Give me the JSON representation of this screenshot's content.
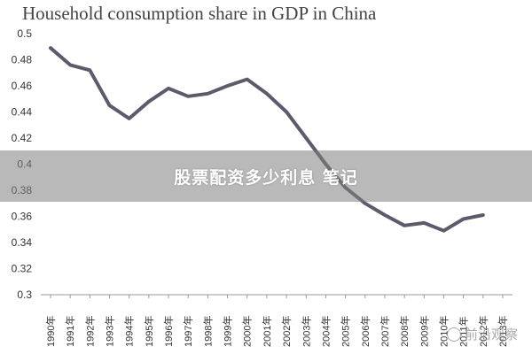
{
  "chart_data": {
    "type": "line",
    "title": "Household consumption share in GDP in China",
    "xlabel": "",
    "ylabel": "",
    "x": [
      "1990年",
      "1991年",
      "1992年",
      "1993年",
      "1994年",
      "1995年",
      "1996年",
      "1997年",
      "1998年",
      "1999年",
      "2000年",
      "2001年",
      "2002年",
      "2003年",
      "2004年",
      "2005年",
      "2006年",
      "2007年",
      "2008年",
      "2009年",
      "2010年",
      "2011年",
      "2012年",
      "2013年"
    ],
    "series": [
      {
        "values": [
          0.489,
          0.476,
          0.472,
          0.445,
          0.435,
          0.448,
          0.458,
          0.452,
          0.454,
          0.46,
          0.465,
          0.454,
          0.44,
          0.42,
          0.4,
          0.382,
          0.37,
          0.361,
          0.353,
          0.355,
          0.349,
          0.358,
          0.361,
          null
        ]
      }
    ],
    "yticks": [
      "0.3",
      "0.32",
      "0.34",
      "0.36",
      "0.38",
      "0.4",
      "0.42",
      "0.44",
      "0.46",
      "0.48",
      "0.5"
    ],
    "ylim": [
      0.3,
      0.5
    ],
    "grid": false,
    "line_color": "#5b5b6b"
  },
  "overlay": {
    "text": "股票配资多少利息 笔记"
  },
  "watermark": {
    "text": "前沿观察"
  }
}
